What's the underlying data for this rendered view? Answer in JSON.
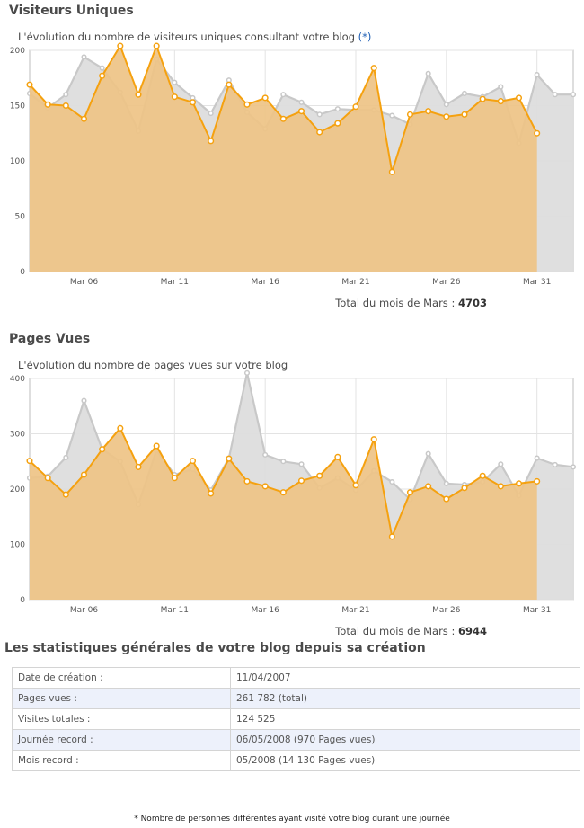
{
  "section1": {
    "title": "Visiteurs Uniques",
    "subtitle": "L'évolution du nombre de visiteurs uniques consultant votre blog",
    "subtitle_link": "(*)",
    "total_label": "Total du mois de Mars :",
    "total_value": "4703"
  },
  "section2": {
    "title": "Pages Vues",
    "subtitle": "L'évolution du nombre de pages vues sur votre blog",
    "total_label": "Total du mois de Mars :",
    "total_value": "6944"
  },
  "stats": {
    "title": "Les statistiques générales de votre blog depuis sa création",
    "rows": [
      {
        "label": "Date de création :",
        "value": "11/04/2007"
      },
      {
        "label": "Pages vues :",
        "value": "261 782 (total)"
      },
      {
        "label": "Visites totales :",
        "value": "124 525"
      },
      {
        "label": "Journée record :",
        "value": "06/05/2008 (970 Pages vues)"
      },
      {
        "label": "Mois record :",
        "value": "05/2008 (14 130 Pages vues)"
      }
    ]
  },
  "footnote": "* Nombre de personnes différentes ayant visité votre blog durant une journée",
  "colors": {
    "current": "#f5a10f",
    "current_fill": "#eec385",
    "previous": "#c8c8c8",
    "previous_fill": "#dddddd"
  },
  "chart_data": [
    {
      "type": "area",
      "x_ticks": [
        "Mar 06",
        "Mar 11",
        "Mar 16",
        "Mar 21",
        "Mar 26",
        "Mar 31"
      ],
      "x_tick_days": [
        6,
        11,
        16,
        21,
        26,
        31
      ],
      "ylim": [
        0,
        200
      ],
      "y_ticks": [
        0,
        50,
        100,
        150,
        200
      ],
      "grid": true,
      "series": [
        {
          "values": [
            161,
            148,
            160,
            194,
            184,
            162,
            127,
            192,
            171,
            157,
            143,
            173,
            144,
            129,
            160,
            153,
            142,
            147,
            146,
            146,
            141,
            133,
            179,
            151,
            161,
            158,
            167,
            116,
            178,
            160,
            160
          ]
        },
        {
          "values": [
            169,
            151,
            150,
            138,
            177,
            204,
            160,
            204,
            158,
            153,
            118,
            169,
            151,
            157,
            138,
            145,
            126,
            134,
            149,
            184,
            90,
            142,
            145,
            140,
            142,
            156,
            154,
            157,
            125
          ]
        }
      ]
    },
    {
      "type": "area",
      "x_ticks": [
        "Mar 06",
        "Mar 11",
        "Mar 16",
        "Mar 21",
        "Mar 26",
        "Mar 31"
      ],
      "x_tick_days": [
        6,
        11,
        16,
        21,
        26,
        31
      ],
      "ylim": [
        0,
        400
      ],
      "y_ticks": [
        0,
        100,
        200,
        300,
        400
      ],
      "grid": true,
      "series": [
        {
          "values": [
            220,
            223,
            257,
            360,
            272,
            250,
            172,
            270,
            226,
            236,
            198,
            256,
            410,
            262,
            250,
            245,
            202,
            220,
            198,
            233,
            213,
            181,
            264,
            210,
            208,
            213,
            245,
            188,
            256,
            244,
            240
          ]
        },
        {
          "values": [
            251,
            220,
            190,
            226,
            272,
            310,
            240,
            278,
            220,
            251,
            192,
            255,
            214,
            205,
            194,
            215,
            224,
            258,
            207,
            290,
            114,
            194,
            205,
            182,
            202,
            224,
            205,
            210,
            214
          ]
        }
      ]
    }
  ]
}
